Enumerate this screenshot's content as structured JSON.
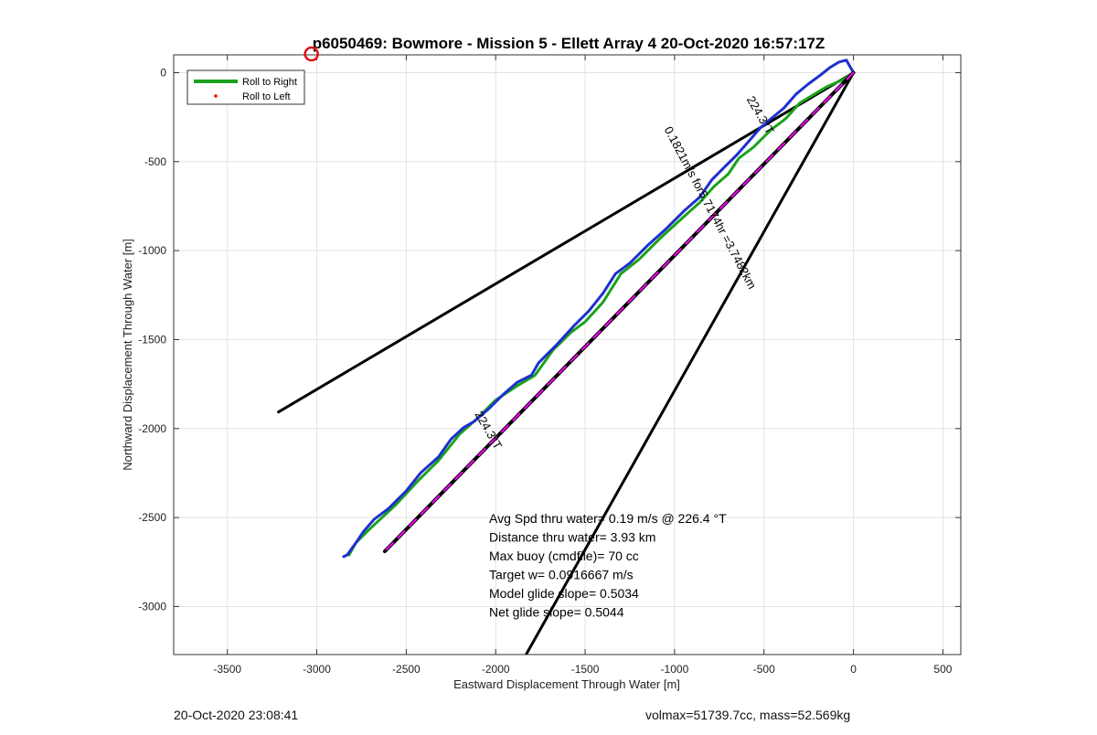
{
  "chart_data": {
    "type": "line",
    "title": "p6050469: Bowmore - Mission 5 - Ellett Array 4 20-Oct-2020 16:57:17Z",
    "xlabel": "Eastward Displacement Through Water [m]",
    "ylabel": "Northward Displacement Through Water [m]",
    "xlim": [
      -3800,
      600
    ],
    "ylim": [
      -3270,
      100
    ],
    "xticks": [
      -3500,
      -3000,
      -2500,
      -2000,
      -1500,
      -1000,
      -500,
      0,
      500
    ],
    "yticks": [
      0,
      -500,
      -1000,
      -1500,
      -2000,
      -2500,
      -3000
    ],
    "grid": true,
    "legend": {
      "placement": "top-left",
      "entries": [
        {
          "label": "Roll to Right",
          "color": "#1aa31a",
          "style": "line"
        },
        {
          "label": "Roll to Left",
          "color": "#ff0000",
          "style": "dot"
        }
      ]
    },
    "series": [
      {
        "color": "#1aa31a",
        "points": [
          [
            0,
            0
          ],
          [
            -60,
            -40
          ],
          [
            -150,
            -80
          ],
          [
            -300,
            -170
          ],
          [
            -380,
            -260
          ],
          [
            -460,
            -320
          ],
          [
            -560,
            -420
          ],
          [
            -640,
            -480
          ],
          [
            -700,
            -570
          ],
          [
            -780,
            -640
          ],
          [
            -860,
            -730
          ],
          [
            -960,
            -820
          ],
          [
            -1080,
            -930
          ],
          [
            -1200,
            -1050
          ],
          [
            -1300,
            -1130
          ],
          [
            -1400,
            -1290
          ],
          [
            -1500,
            -1400
          ],
          [
            -1580,
            -1460
          ],
          [
            -1680,
            -1560
          ],
          [
            -1780,
            -1700
          ],
          [
            -1880,
            -1760
          ],
          [
            -2000,
            -1840
          ],
          [
            -2100,
            -1940
          ],
          [
            -2200,
            -2030
          ],
          [
            -2320,
            -2180
          ],
          [
            -2440,
            -2300
          ],
          [
            -2560,
            -2430
          ],
          [
            -2700,
            -2560
          ],
          [
            -2780,
            -2640
          ],
          [
            -2820,
            -2710
          ]
        ]
      },
      {
        "color": "#1f2fcf",
        "points": [
          [
            0,
            0
          ],
          [
            -40,
            70
          ],
          [
            -80,
            60
          ],
          [
            -130,
            30
          ],
          [
            -180,
            -10
          ],
          [
            -260,
            -70
          ],
          [
            -320,
            -120
          ],
          [
            -390,
            -200
          ],
          [
            -450,
            -250
          ],
          [
            -520,
            -310
          ],
          [
            -580,
            -380
          ],
          [
            -650,
            -460
          ],
          [
            -720,
            -530
          ],
          [
            -790,
            -600
          ],
          [
            -860,
            -700
          ],
          [
            -950,
            -780
          ],
          [
            -1050,
            -880
          ],
          [
            -1150,
            -970
          ],
          [
            -1250,
            -1070
          ],
          [
            -1330,
            -1130
          ],
          [
            -1400,
            -1240
          ],
          [
            -1480,
            -1340
          ],
          [
            -1560,
            -1420
          ],
          [
            -1660,
            -1530
          ],
          [
            -1760,
            -1630
          ],
          [
            -1800,
            -1700
          ],
          [
            -1880,
            -1740
          ],
          [
            -1960,
            -1810
          ],
          [
            -2040,
            -1890
          ],
          [
            -2120,
            -1960
          ],
          [
            -2180,
            -1995
          ],
          [
            -2250,
            -2060
          ],
          [
            -2320,
            -2160
          ],
          [
            -2420,
            -2250
          ],
          [
            -2500,
            -2350
          ],
          [
            -2600,
            -2450
          ],
          [
            -2680,
            -2510
          ],
          [
            -2740,
            -2580
          ],
          [
            -2780,
            -2640
          ],
          [
            -2830,
            -2710
          ],
          [
            -2850,
            -2720
          ]
        ]
      },
      {
        "color": "#000000",
        "points": [
          [
            0,
            0
          ],
          [
            -2620,
            -2690
          ]
        ]
      },
      {
        "color": "#ff00ff",
        "points": [
          [
            0,
            0
          ],
          [
            -2620,
            -2690
          ]
        ]
      }
    ],
    "reference_lines": [
      {
        "color": "#000000",
        "points": [
          [
            0,
            0
          ],
          [
            -3220,
            -1910
          ]
        ]
      },
      {
        "color": "#000000",
        "points": [
          [
            0,
            0
          ],
          [
            -1830,
            -3270
          ]
        ]
      }
    ],
    "annotations": [
      {
        "text": "224.3°T",
        "x": -540,
        "y": -250,
        "rotation": 60
      },
      {
        "text": "0.1821m/s for5.7174hr =3.7482km",
        "x": -820,
        "y": -770,
        "rotation": 62
      },
      {
        "text": "224.3°T",
        "x": -2060,
        "y": -2020,
        "rotation": 60
      }
    ],
    "stats_block": [
      "Avg Spd thru water=  0.19 m/s @ 226.4 °T",
      "Distance thru water=  3.93 km",
      "Max buoy (cmdfile)= 70 cc",
      "Target w= 0.0916667 m/s",
      "Model glide slope= 0.5034",
      "Net glide slope= 0.5044"
    ],
    "marker": {
      "x": -3030,
      "y": 105,
      "color": "#dd1111"
    }
  },
  "footer": {
    "timestamp": "20-Oct-2020 23:08:41",
    "volume_mass": "volmax=51739.7cc, mass=52.569kg"
  }
}
